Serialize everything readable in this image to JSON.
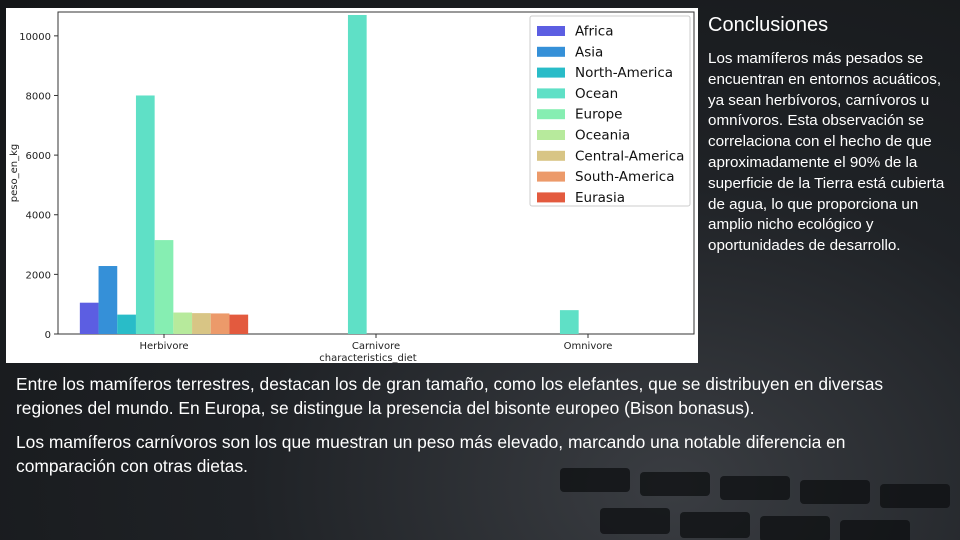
{
  "slide": {
    "side_title": "Conclusiones",
    "side_text": "Los mamíferos más pesados se encuentran en entornos acuáticos, ya sean herbívoros, carnívoros u omnívoros. Esta observación se correlaciona con el hecho de que aproximadamente el 90% de la superficie de la Tierra está cubierta de agua, lo que proporciona un amplio nicho ecológico y oportunidades de desarrollo.",
    "paragraph_1": "Entre los mamíferos terrestres, destacan los de gran tamaño, como los elefantes, que se distribuyen en diversas regiones del mundo. En Europa, se distingue la presencia del bisonte europeo (Bison bonasus).",
    "paragraph_2": "Los mamíferos carnívoros son los que muestran un peso más elevado, marcando una notable diferencia en comparación con otras dietas."
  },
  "chart_data": {
    "type": "bar",
    "xlabel": "characteristics_diet",
    "ylabel": "peso_en_kg",
    "categories": [
      "Herbivore",
      "Carnivore",
      "Omnivore"
    ],
    "ylim": [
      0,
      10800
    ],
    "yticks": [
      0,
      2000,
      4000,
      6000,
      8000,
      10000
    ],
    "legend_position": "top-right",
    "grid": false,
    "series": [
      {
        "name": "Africa",
        "color": "#5c5ee2",
        "values": [
          1050,
          null,
          null
        ]
      },
      {
        "name": "Asia",
        "color": "#3590d8",
        "values": [
          2280,
          null,
          null
        ]
      },
      {
        "name": "North-America",
        "color": "#29bcc8",
        "values": [
          650,
          null,
          null
        ]
      },
      {
        "name": "Ocean",
        "color": "#5fe0c6",
        "values": [
          8000,
          10700,
          800
        ]
      },
      {
        "name": "Europe",
        "color": "#86eeb2",
        "values": [
          3150,
          null,
          null
        ]
      },
      {
        "name": "Oceania",
        "color": "#b7ea9c",
        "values": [
          720,
          null,
          null
        ]
      },
      {
        "name": "Central-America",
        "color": "#d8c585",
        "values": [
          700,
          null,
          null
        ]
      },
      {
        "name": "South-America",
        "color": "#ec9a6a",
        "values": [
          690,
          null,
          null
        ]
      },
      {
        "name": "Eurasia",
        "color": "#e35a3e",
        "values": [
          650,
          null,
          null
        ]
      }
    ]
  }
}
